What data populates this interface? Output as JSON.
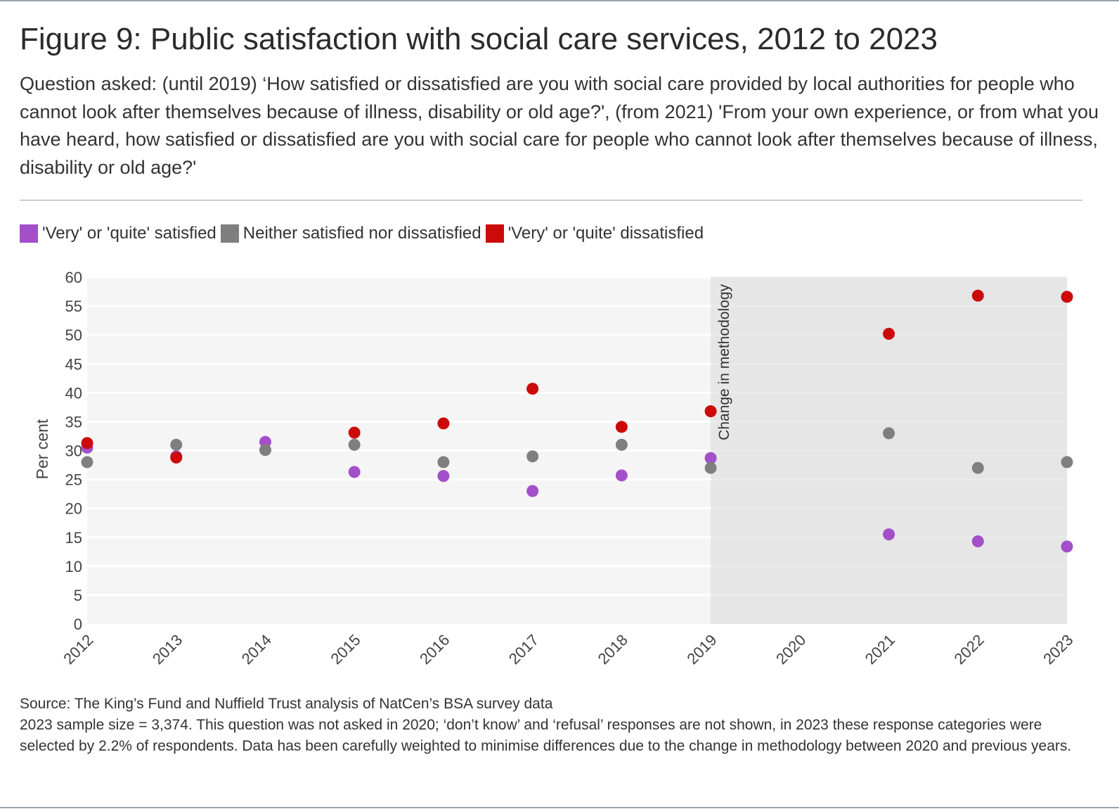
{
  "title": "Figure 9: Public satisfaction with social care services, 2012 to 2023",
  "subtitle": "Question asked: (until 2019) ‘How satisfied or dissatisfied are you with social care provided by local authorities for people who cannot look after themselves because of illness, disability or old age?', (from 2021) 'From your own experience, or from what you have heard, how satisfied or dissatisfied are you with social care for people who cannot look after themselves because of illness, disability or old age?'",
  "legend": [
    {
      "label": "'Very' or 'quite' satisfied",
      "color": "#a24fc9"
    },
    {
      "label": "Neither satisfied nor dissatisfied",
      "color": "#7f7f7f"
    },
    {
      "label": "'Very' or 'quite' dissatisfied",
      "color": "#cc0a0a"
    }
  ],
  "source": {
    "line1": "Source: The King’s Fund and Nuffield Trust analysis of NatCen’s BSA survey data",
    "line2": "2023 sample size = 3,374. This question was not asked in 2020; ‘don’t know’ and ‘refusal’ responses are not shown, in 2023 these response categories were selected by 2.2% of respondents. Data has been carefully weighted to minimise differences due to the change in methodology between 2020 and previous years."
  },
  "chart_data": {
    "type": "scatter",
    "title": "Figure 9: Public satisfaction with social care services, 2012 to 2023",
    "xlabel": "",
    "ylabel": "Per cent",
    "ylim": [
      0,
      60
    ],
    "yticks": [
      0,
      5,
      10,
      15,
      20,
      25,
      30,
      35,
      40,
      45,
      50,
      55,
      60
    ],
    "categories": [
      "2012",
      "2013",
      "2014",
      "2015",
      "2016",
      "2017",
      "2018",
      "2019",
      "2020",
      "2021",
      "2022",
      "2023"
    ],
    "annotation": {
      "text": "Change in methodology",
      "from_category": "2019",
      "to_category": "2023"
    },
    "grid": true,
    "series": [
      {
        "name": "'Very' or 'quite' satisfied",
        "color": "#a24fc9",
        "values": [
          30.5,
          29,
          31.5,
          26.3,
          25.6,
          23,
          25.7,
          28.7,
          null,
          15.5,
          14.3,
          13.4
        ]
      },
      {
        "name": "Neither satisfied nor dissatisfied",
        "color": "#7f7f7f",
        "values": [
          28,
          31,
          30.1,
          31,
          28,
          29,
          31,
          27,
          null,
          33,
          27,
          28
        ]
      },
      {
        "name": "'Very' or 'quite' dissatisfied",
        "color": "#cc0a0a",
        "values": [
          31.3,
          28.8,
          null,
          33.1,
          34.7,
          40.7,
          34.1,
          36.8,
          null,
          50.2,
          56.8,
          56.6
        ]
      }
    ]
  }
}
